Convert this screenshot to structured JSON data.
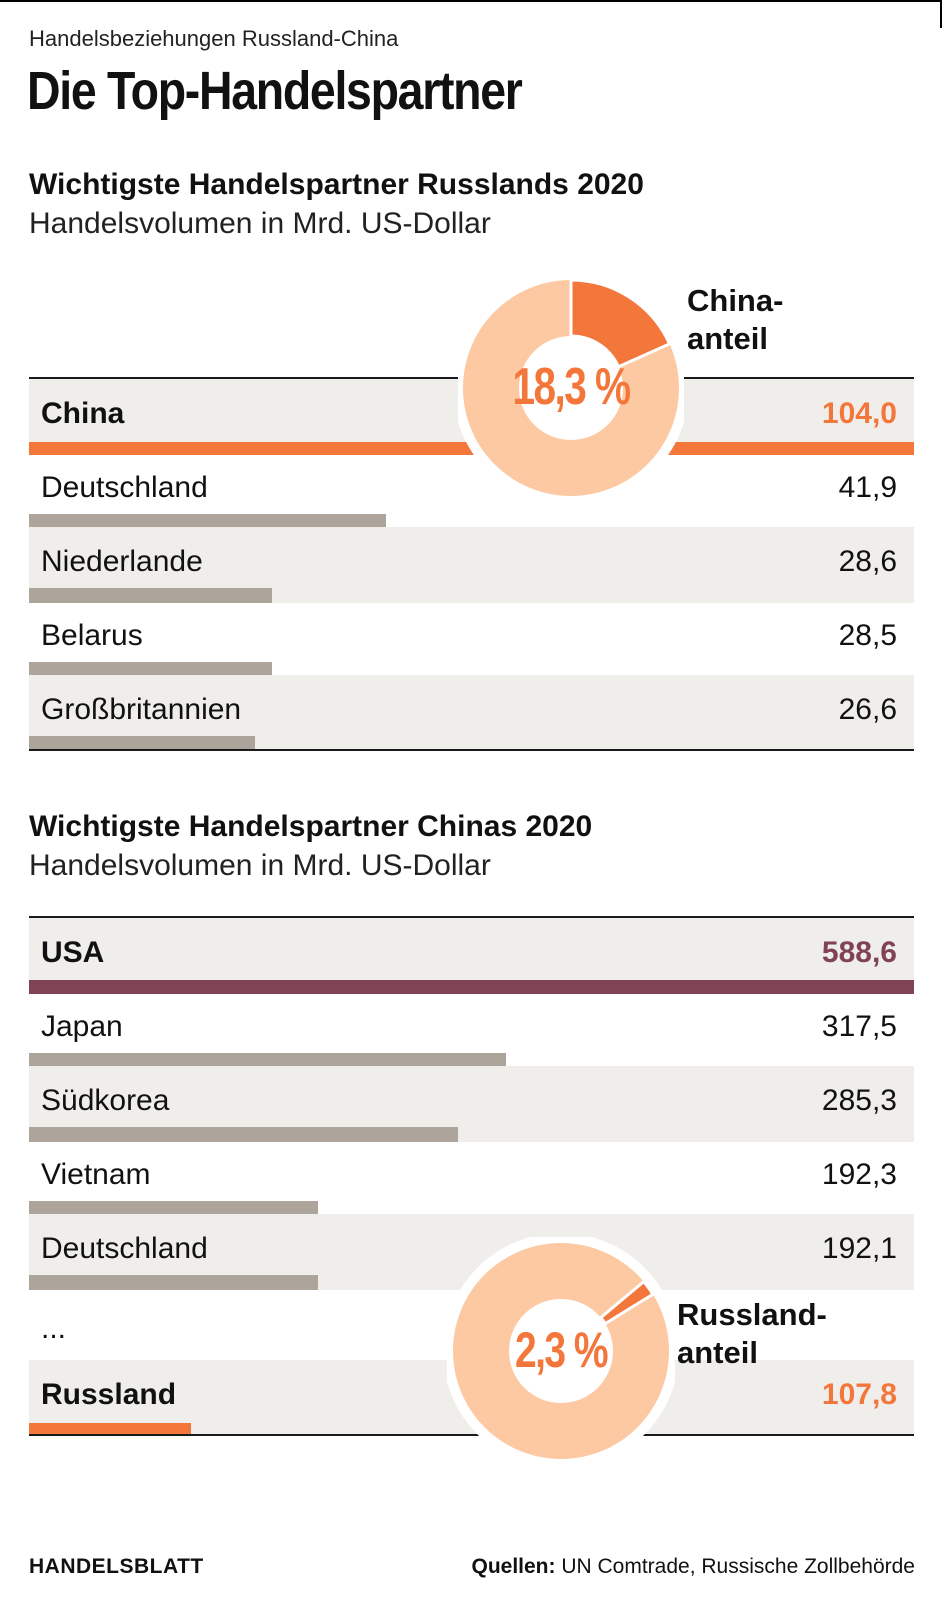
{
  "kicker": "Handelsbeziehungen Russland-China",
  "headline": "Die Top-Handelspartner",
  "colors": {
    "orange": "#f3763b",
    "light_orange": "#fcc9a2",
    "maroon": "#7f4353",
    "grey_bar": "#ada59b",
    "row_bg": "#f0eeeb"
  },
  "footer": {
    "brand": "HANDELSBLATT",
    "sources_label": "Quellen:",
    "sources_text": "UN Comtrade, Russische Zollbehörde"
  },
  "chart_data": [
    {
      "type": "bar",
      "title": "Wichtigste Handelspartner Russlands 2020",
      "subtitle": "Handelsvolumen in Mrd. US-Dollar",
      "unit": "Mrd. US-Dollar",
      "categories": [
        "China",
        "Deutschland",
        "Niederlande",
        "Belarus",
        "Großbritannien"
      ],
      "values": [
        104.0,
        41.9,
        28.6,
        28.5,
        26.6
      ],
      "value_labels": [
        "104,0",
        "41,9",
        "28,6",
        "28,5",
        "26,6"
      ],
      "highlight": "China",
      "bar_scale_max": 104.0,
      "donut": {
        "type": "pie",
        "percent": 18.3,
        "center_label": "18,3 %",
        "label_line1": "China-",
        "label_line2": "anteil"
      }
    },
    {
      "type": "bar",
      "title": "Wichtigste Handelspartner Chinas 2020",
      "subtitle": "Handelsvolumen in Mrd. US-Dollar",
      "unit": "Mrd. US-Dollar",
      "categories": [
        "USA",
        "Japan",
        "Südkorea",
        "Vietnam",
        "Deutschland",
        "Russland"
      ],
      "values": [
        588.6,
        317.5,
        285.3,
        192.3,
        192.1,
        107.8
      ],
      "value_labels": [
        "588,6",
        "317,5",
        "285,3",
        "192,3",
        "192,1",
        "107,8"
      ],
      "highlight": "USA",
      "ellipsis": "...",
      "bar_scale_max": 588.6,
      "donut": {
        "type": "pie",
        "percent": 2.3,
        "center_label": "2,3 %",
        "label_line1": "Russland-",
        "label_line2": "anteil"
      }
    }
  ]
}
